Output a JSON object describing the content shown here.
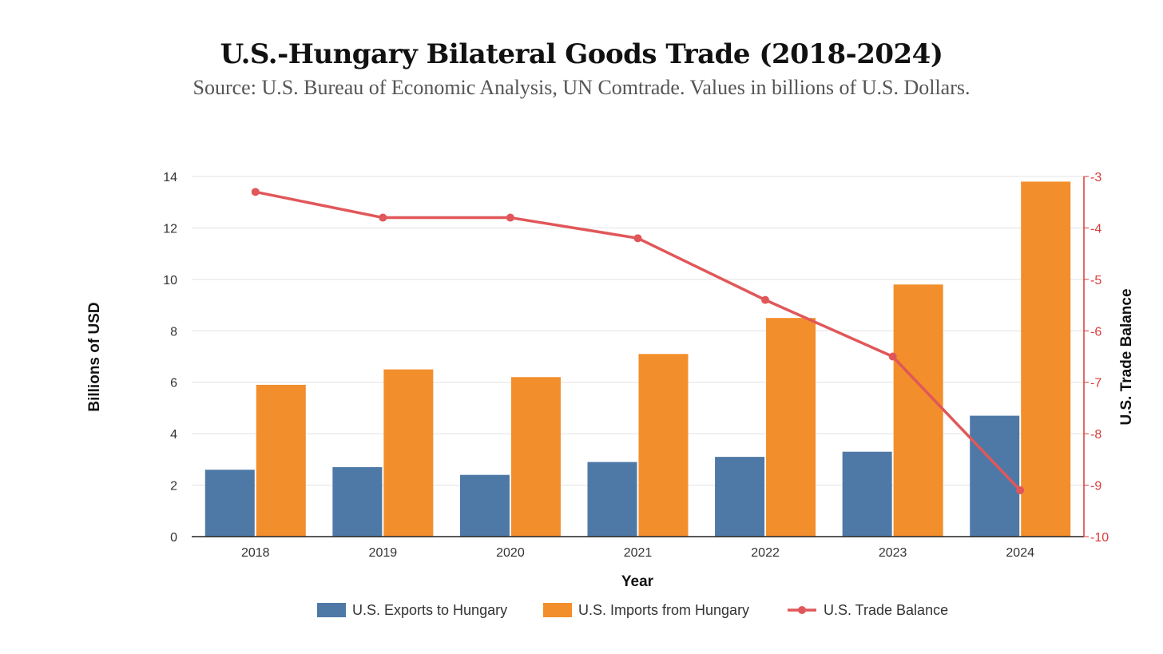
{
  "chart_data": {
    "type": "bar",
    "title": "U.S.-Hungary Bilateral Goods Trade (2018-2024)",
    "subtitle": "Source: U.S. Bureau of Economic Analysis, UN Comtrade. Values in billions of U.S. Dollars.",
    "xlabel": "Year",
    "ylabel": "Billions of USD",
    "y2label": "U.S. Trade Balance",
    "categories": [
      "2018",
      "2019",
      "2020",
      "2021",
      "2022",
      "2023",
      "2024"
    ],
    "ylim": [
      0,
      14
    ],
    "yticks": [
      "0",
      "2",
      "4",
      "6",
      "8",
      "10",
      "12",
      "14"
    ],
    "y2lim": [
      -10,
      -3
    ],
    "y2ticks": [
      "-10",
      "-9",
      "-8",
      "-7",
      "-6",
      "-5",
      "-4",
      "-3"
    ],
    "grid": true,
    "legend_position": "bottom",
    "series": [
      {
        "name": "U.S. Exports to Hungary",
        "type": "bar",
        "axis": "left",
        "color": "#4e79a7",
        "values": [
          2.6,
          2.7,
          2.4,
          2.9,
          3.1,
          3.3,
          4.7
        ]
      },
      {
        "name": "U.S. Imports from Hungary",
        "type": "bar",
        "axis": "left",
        "color": "#f28e2b",
        "values": [
          5.9,
          6.5,
          6.2,
          7.1,
          8.5,
          9.8,
          13.8
        ]
      },
      {
        "name": "U.S. Trade Balance",
        "type": "line",
        "axis": "right",
        "color": "#e15759",
        "values": [
          -3.3,
          -3.8,
          -3.8,
          -4.2,
          -5.4,
          -6.5,
          -9.1
        ]
      }
    ]
  }
}
